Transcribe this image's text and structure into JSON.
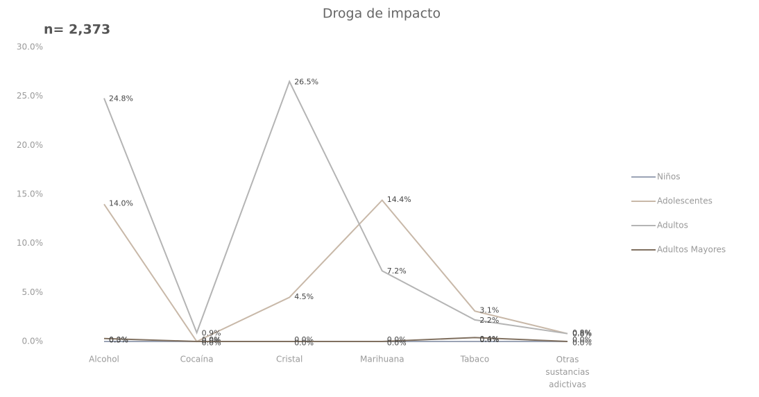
{
  "chart_data": {
    "type": "line",
    "title": "Droga de impacto",
    "annotation": "n= 2,373",
    "categories": [
      "Alcohol",
      "Cocaína",
      "Cristal",
      "Marihuana",
      "Tabaco",
      "Otras sustancias adictivas"
    ],
    "series": [
      {
        "name": "Niños",
        "color": "#9aa3b5",
        "values": [
          0.0,
          0.0,
          0.0,
          0.0,
          0.0,
          0.0
        ],
        "value_labels": [
          "0.0%",
          "0.0%",
          "0.0%",
          "0.0%",
          "0.0%",
          "0.0%"
        ]
      },
      {
        "name": "Adolescentes",
        "color": "#c8b8a8",
        "values": [
          14.0,
          0.0,
          4.5,
          14.4,
          3.1,
          0.8
        ],
        "value_labels": [
          "14.0%",
          "0.0%",
          "4.5%",
          "14.4%",
          "3.1%",
          "0.8%"
        ]
      },
      {
        "name": "Adultos",
        "color": "#b4b4b4",
        "values": [
          24.8,
          0.9,
          26.5,
          7.2,
          2.2,
          0.8
        ],
        "value_labels": [
          "24.8%",
          "0.9%",
          "26.5%",
          "7.2%",
          "2.2%",
          "0.8%"
        ]
      },
      {
        "name": "Adultos Mayores",
        "color": "#807060",
        "values": [
          0.3,
          0.0,
          0.0,
          0.0,
          0.4,
          0.0
        ],
        "value_labels": [
          "0.3%",
          "0.0%",
          "0.0%",
          "0.0%",
          "0.4%",
          "0.0%"
        ]
      }
    ],
    "ylim": [
      0,
      30
    ],
    "yticks": [
      {
        "value": 0,
        "label": "0.0%"
      },
      {
        "value": 5,
        "label": "5.0%"
      },
      {
        "value": 10,
        "label": "10.0%"
      },
      {
        "value": 15,
        "label": "15.0%"
      },
      {
        "value": 20,
        "label": "20.0%"
      },
      {
        "value": 25,
        "label": "25.0%"
      },
      {
        "value": 30,
        "label": "30.0%"
      }
    ],
    "legend": "right"
  }
}
